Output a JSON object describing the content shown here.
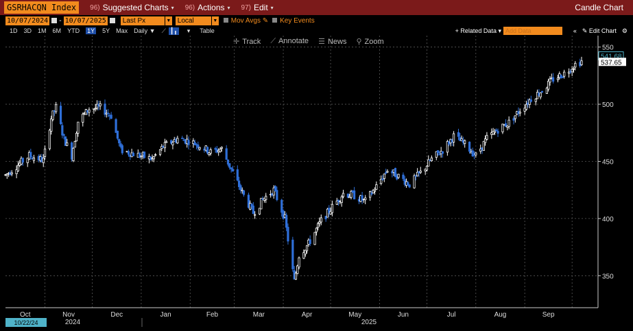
{
  "titlebar": {
    "ticker": "GSRHACQN Index",
    "menu": [
      {
        "num": "96)",
        "label": "Suggested Charts"
      },
      {
        "num": "96)",
        "label": "Actions"
      },
      {
        "num": "97)",
        "label": "Edit"
      }
    ],
    "chart_type": "Candle Chart"
  },
  "toolbar": {
    "start_date": "10/07/2024",
    "end_date": "10/07/2025",
    "price_field": "Last Px",
    "currency": "Local CCY",
    "mov_avgs": "Mov Avgs",
    "key_events": "Key Events",
    "periods": [
      "1D",
      "3D",
      "1M",
      "6M",
      "YTD",
      "1Y",
      "5Y",
      "Max"
    ],
    "active_period": "1Y",
    "frequency": "Daily",
    "table": "Table",
    "related_data": "+ Related Data",
    "add_data_placeholder": "Add Data",
    "edit_chart": "Edit Chart"
  },
  "chart_tools": [
    "Track",
    "Annotate",
    "News",
    "Zoom"
  ],
  "colors": {
    "up": "#ffffff",
    "down": "#2f6fd8",
    "accent": "#f28b1e",
    "titlebar": "#7b1a1a",
    "grid": "#5a5a5a"
  },
  "chart_data": {
    "type": "candlestick",
    "title": "",
    "xlabel": "",
    "ylabel": "",
    "ylim": [
      322,
      560
    ],
    "y_ticks": [
      350,
      400,
      450,
      500,
      550
    ],
    "x_month_labels": [
      "Oct",
      "Nov",
      "Dec",
      "Jan",
      "Feb",
      "Mar",
      "Apr",
      "May",
      "Jun",
      "Jul",
      "Aug",
      "Sep"
    ],
    "year_labels": [
      "2024",
      "2025"
    ],
    "cursor_date": "10/22/24",
    "last_price": 537.65,
    "last_high": 541.68,
    "last_price_label": "537.65",
    "last_high_label": "541.68",
    "close_path": [
      [
        "2024-10-07",
        438
      ],
      [
        "2024-10-15",
        447
      ],
      [
        "2024-10-22",
        455
      ],
      [
        "2024-10-31",
        451
      ],
      [
        "2024-11-05",
        488
      ],
      [
        "2024-11-08",
        497
      ],
      [
        "2024-11-13",
        470
      ],
      [
        "2024-11-18",
        455
      ],
      [
        "2024-11-22",
        485
      ],
      [
        "2024-11-29",
        496
      ],
      [
        "2024-12-06",
        497
      ],
      [
        "2024-12-13",
        490
      ],
      [
        "2024-12-19",
        460
      ],
      [
        "2024-12-31",
        455
      ],
      [
        "2025-01-08",
        452
      ],
      [
        "2025-01-15",
        463
      ],
      [
        "2025-01-24",
        470
      ],
      [
        "2025-01-31",
        468
      ],
      [
        "2025-02-07",
        464
      ],
      [
        "2025-02-14",
        458
      ],
      [
        "2025-02-21",
        461
      ],
      [
        "2025-02-28",
        440
      ],
      [
        "2025-03-07",
        420
      ],
      [
        "2025-03-13",
        405
      ],
      [
        "2025-03-20",
        418
      ],
      [
        "2025-03-26",
        425
      ],
      [
        "2025-04-02",
        400
      ],
      [
        "2025-04-08",
        345
      ],
      [
        "2025-04-11",
        368
      ],
      [
        "2025-04-17",
        378
      ],
      [
        "2025-04-25",
        398
      ],
      [
        "2025-05-02",
        410
      ],
      [
        "2025-05-09",
        422
      ],
      [
        "2025-05-16",
        420
      ],
      [
        "2025-05-23",
        415
      ],
      [
        "2025-05-30",
        428
      ],
      [
        "2025-06-06",
        443
      ],
      [
        "2025-06-13",
        437
      ],
      [
        "2025-06-20",
        430
      ],
      [
        "2025-06-27",
        440
      ],
      [
        "2025-07-04",
        452
      ],
      [
        "2025-07-11",
        460
      ],
      [
        "2025-07-18",
        472
      ],
      [
        "2025-07-25",
        465
      ],
      [
        "2025-08-01",
        455
      ],
      [
        "2025-08-08",
        470
      ],
      [
        "2025-08-15",
        478
      ],
      [
        "2025-08-22",
        484
      ],
      [
        "2025-08-29",
        495
      ],
      [
        "2025-09-05",
        505
      ],
      [
        "2025-09-12",
        512
      ],
      [
        "2025-09-19",
        522
      ],
      [
        "2025-09-26",
        527
      ],
      [
        "2025-10-03",
        535
      ],
      [
        "2025-10-07",
        537.65
      ]
    ]
  }
}
